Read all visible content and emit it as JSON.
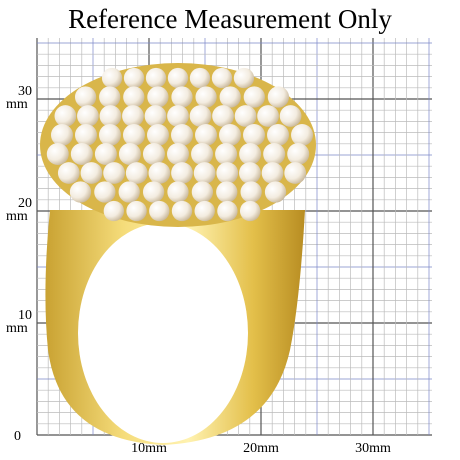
{
  "title": "Reference Measurement Only",
  "y_labels": [
    {
      "number": "30",
      "unit": "mm"
    },
    {
      "number": "20",
      "unit": "mm"
    },
    {
      "number": "10",
      "unit": "mm"
    },
    {
      "number": "0"
    }
  ],
  "x_labels": [
    "10mm",
    "20mm",
    "30mm"
  ]
}
